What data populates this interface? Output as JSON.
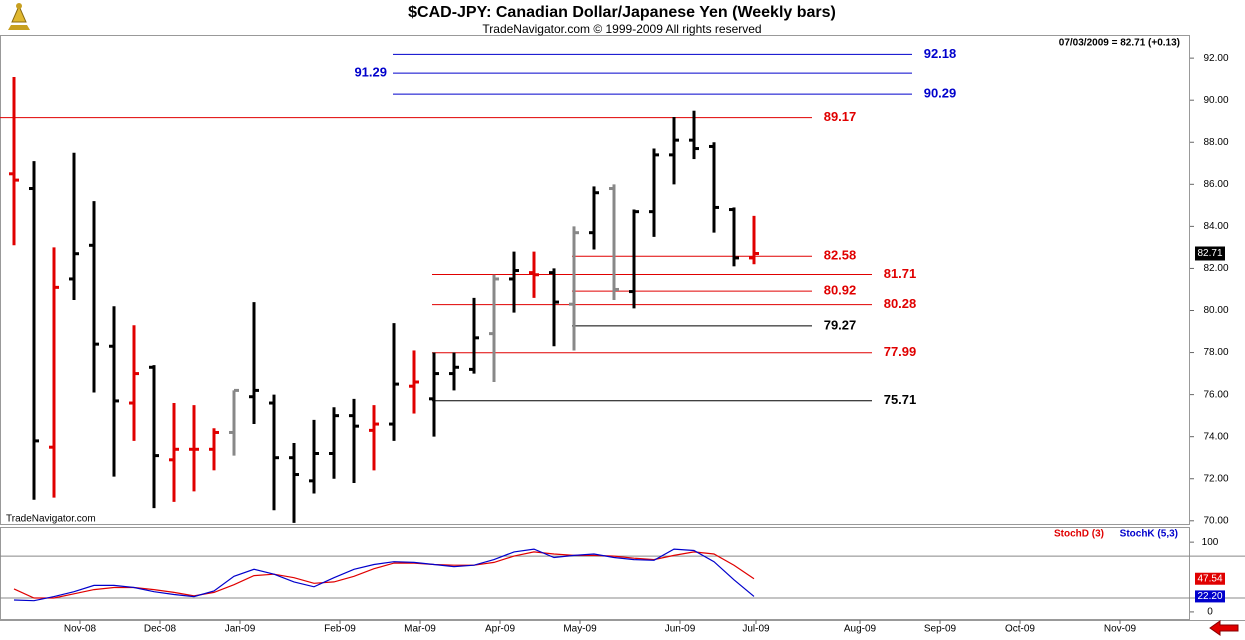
{
  "chart_data": [
    {
      "type": "ohlc",
      "title": "$CAD-JPY:  Canadian Dollar/Japanese Yen  (Weekly bars)",
      "subtitle": "TradeNavigator.com © 1999-2009 All rights reserved",
      "watermark": "TradeNavigator.com",
      "quote": "07/03/2009 = 82.71 (+0.13)",
      "xlim": [
        -0.7,
        58.8
      ],
      "ylim": [
        69.8,
        93.1
      ],
      "yticks": [
        {
          "value": 70,
          "label": "70.00"
        },
        {
          "value": 72,
          "label": "72.00"
        },
        {
          "value": 74,
          "label": "74.00"
        },
        {
          "value": 76,
          "label": "76.00"
        },
        {
          "value": 78,
          "label": "78.00"
        },
        {
          "value": 80,
          "label": "80.00"
        },
        {
          "value": 82,
          "label": "82.00"
        },
        {
          "value": 84,
          "label": "84.00"
        },
        {
          "value": 86,
          "label": "86.00"
        },
        {
          "value": 88,
          "label": "88.00"
        },
        {
          "value": 90,
          "label": "90.00"
        },
        {
          "value": 92,
          "label": "92.00"
        }
      ],
      "xticks": [
        {
          "value": 3.3,
          "label": "Nov-08"
        },
        {
          "value": 7.3,
          "label": "Dec-08"
        },
        {
          "value": 11.3,
          "label": "Jan-09"
        },
        {
          "value": 16.3,
          "label": "Feb-09"
        },
        {
          "value": 20.3,
          "label": "Mar-09"
        },
        {
          "value": 24.3,
          "label": "Apr-09"
        },
        {
          "value": 28.3,
          "label": "May-09"
        },
        {
          "value": 33.3,
          "label": "Jun-09"
        },
        {
          "value": 37.1,
          "label": "Jul-09"
        },
        {
          "value": 42.3,
          "label": "Aug-09"
        },
        {
          "value": 46.3,
          "label": "Sep-09"
        },
        {
          "value": 50.3,
          "label": "Oct-09"
        },
        {
          "value": 55.3,
          "label": "Nov-09"
        }
      ],
      "series": [
        {
          "open": [
            86.5,
            85.8,
            73.5,
            81.5,
            83.1,
            78.3,
            75.6,
            77.3,
            72.9,
            73.4,
            73.4,
            74.2,
            75.9,
            75.6,
            73.0,
            71.9,
            73.2,
            75.0,
            74.3,
            74.6,
            76.4,
            75.8,
            77.0,
            77.2,
            78.9,
            81.5,
            81.8,
            81.8,
            80.3,
            83.7,
            85.8,
            80.9,
            84.7,
            87.4,
            88.1,
            87.8,
            84.8,
            82.5
          ],
          "high": [
            91.1,
            87.1,
            83.0,
            87.5,
            85.2,
            80.2,
            79.3,
            77.4,
            75.6,
            75.5,
            74.4,
            76.2,
            80.4,
            76.0,
            73.7,
            74.8,
            75.4,
            75.8,
            75.5,
            79.4,
            78.1,
            78.0,
            78.0,
            80.6,
            81.7,
            82.8,
            82.8,
            82.0,
            84.0,
            85.9,
            86.0,
            84.8,
            87.7,
            89.2,
            89.5,
            88.0,
            84.9,
            84.5
          ],
          "low": [
            83.1,
            71.0,
            71.1,
            80.5,
            76.1,
            72.1,
            73.8,
            70.6,
            70.9,
            71.4,
            72.4,
            73.1,
            74.6,
            70.5,
            69.9,
            71.3,
            72.0,
            71.8,
            72.4,
            73.8,
            75.1,
            74.0,
            76.2,
            77.0,
            76.6,
            79.9,
            80.6,
            78.3,
            78.1,
            82.9,
            80.5,
            80.1,
            83.5,
            86.0,
            87.2,
            83.7,
            82.1,
            82.2
          ],
          "close": [
            86.2,
            73.8,
            81.1,
            82.7,
            78.4,
            75.7,
            77.0,
            73.1,
            73.4,
            73.4,
            74.2,
            76.2,
            76.2,
            73.0,
            72.2,
            73.2,
            75.0,
            74.5,
            74.6,
            76.5,
            76.6,
            77.0,
            77.3,
            78.7,
            81.5,
            81.9,
            81.7,
            80.4,
            83.7,
            85.6,
            81.0,
            84.7,
            87.4,
            88.1,
            87.7,
            84.9,
            82.5,
            82.71
          ],
          "colors": [
            "#e00000",
            "#000000",
            "#e00000",
            "#000000",
            "#000000",
            "#000000",
            "#e00000",
            "#000000",
            "#e00000",
            "#e00000",
            "#e00000",
            "#888888",
            "#000000",
            "#000000",
            "#000000",
            "#000000",
            "#000000",
            "#000000",
            "#e00000",
            "#000000",
            "#e00000",
            "#000000",
            "#000000",
            "#000000",
            "#888888",
            "#000000",
            "#e00000",
            "#000000",
            "#888888",
            "#000000",
            "#888888",
            "#000000",
            "#000000",
            "#000000",
            "#000000",
            "#000000",
            "#000000",
            "#e00000"
          ]
        }
      ],
      "levels": [
        {
          "value": 92.18,
          "color": "#0000cc",
          "x": [
            18.95,
            44.9
          ]
        },
        {
          "value": 91.29,
          "color": "#0000cc",
          "x": [
            18.95,
            44.9
          ],
          "label_side": "left"
        },
        {
          "value": 90.29,
          "color": "#0000cc",
          "x": [
            18.95,
            44.9
          ]
        },
        {
          "value": 89.17,
          "color": "#e00000",
          "x": [
            -0.7,
            39.9
          ]
        },
        {
          "value": 82.58,
          "color": "#e00000",
          "x": [
            27.9,
            39.9
          ]
        },
        {
          "value": 81.71,
          "color": "#e00000",
          "x": [
            20.9,
            42.9
          ]
        },
        {
          "value": 80.92,
          "color": "#e00000",
          "x": [
            27.9,
            39.9
          ]
        },
        {
          "value": 80.28,
          "color": "#e00000",
          "x": [
            20.9,
            42.9
          ]
        },
        {
          "value": 79.27,
          "color": "#000000",
          "x": [
            27.9,
            39.9
          ]
        },
        {
          "value": 77.99,
          "color": "#e00000",
          "x": [
            20.9,
            42.9
          ]
        },
        {
          "value": 75.71,
          "color": "#000000",
          "x": [
            20.9,
            42.9
          ]
        }
      ]
    },
    {
      "type": "line",
      "xlim": [
        -0.7,
        58.8
      ],
      "ylim": [
        -11.6,
        121.7
      ],
      "yticks": [
        100,
        0
      ],
      "ref_lines": [
        80,
        20
      ],
      "series": [
        {
          "name": "StochD (3)",
          "color": "#e00000",
          "values": [
            33,
            20,
            20,
            26,
            32,
            35,
            35,
            32,
            28,
            23,
            28,
            39,
            52,
            54,
            49,
            41,
            43,
            51,
            62,
            70,
            70,
            68,
            67,
            67,
            71,
            80,
            86,
            83,
            81,
            81,
            80,
            77,
            75,
            81,
            86,
            83,
            67,
            47.54
          ],
          "value_labels": [
            null,
            null,
            null,
            null,
            null,
            null,
            null,
            null,
            null,
            null,
            null,
            null,
            null,
            null,
            null,
            null,
            null,
            null,
            null,
            null,
            null,
            null,
            null,
            null,
            null,
            null,
            null,
            null,
            null,
            null,
            null,
            null,
            null,
            null,
            null,
            null,
            null,
            "47.54"
          ]
        },
        {
          "name": "StochK (5,3)",
          "color": "#0000cc",
          "values": [
            17,
            16,
            22,
            29,
            38,
            38,
            35,
            29,
            25,
            22,
            30,
            51,
            61,
            54,
            43,
            36,
            49,
            61,
            68,
            72,
            71,
            68,
            65,
            67,
            75,
            86,
            90,
            78,
            81,
            83,
            78,
            75,
            74,
            90,
            88,
            72,
            46,
            22.2
          ],
          "value_labels": [
            null,
            null,
            null,
            null,
            null,
            null,
            null,
            null,
            null,
            null,
            null,
            null,
            null,
            null,
            null,
            null,
            null,
            null,
            null,
            null,
            null,
            null,
            null,
            null,
            null,
            null,
            null,
            null,
            null,
            null,
            null,
            null,
            null,
            null,
            null,
            null,
            null,
            "22.20"
          ]
        }
      ]
    }
  ]
}
